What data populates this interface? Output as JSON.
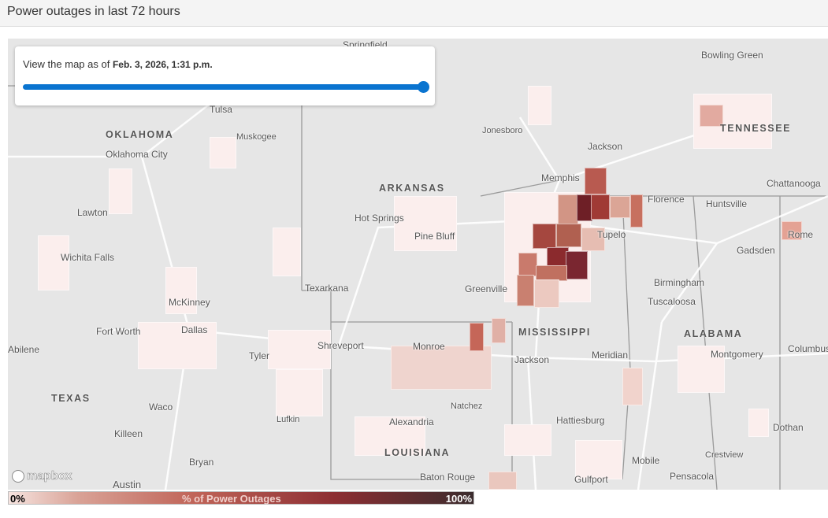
{
  "header": {
    "title": "Power outages in last 72 hours"
  },
  "control": {
    "prefix": "View the map as of",
    "date": "Feb. 3, 2026, 1:31 p.m.",
    "slider_value_pct": 100,
    "accent": "#0a74d0"
  },
  "map": {
    "attribution": "mapbox",
    "states": [
      "OKLAHOMA",
      "ARKANSAS",
      "TENNESSEE",
      "MISSISSIPPI",
      "ALABAMA",
      "TEXAS",
      "LOUISIANA"
    ],
    "cities": [
      "Springfield",
      "Bowling Green",
      "Tulsa",
      "Muskogee",
      "Jonesboro",
      "Jackson",
      "Oklahoma City",
      "Memphis",
      "Chattanooga",
      "Florence",
      "Huntsville",
      "Lawton",
      "Hot Springs",
      "Pine Bluff",
      "Tupelo",
      "Rome",
      "Wichita Falls",
      "Gadsden",
      "Birmingham",
      "Greenville",
      "Texarkana",
      "Tuscaloosa",
      "McKinney",
      "Fort Worth",
      "Dallas",
      "Abilene",
      "Shreveport",
      "Monroe",
      "Tyler",
      "Jackson",
      "Meridian",
      "Montgomery",
      "Columbus",
      "Waco",
      "Natchez",
      "Lufkin",
      "Alexandria",
      "Hattiesburg",
      "Dothan",
      "Killeen",
      "Bryan",
      "Crestview",
      "Mobile",
      "Pensacola",
      "Austin",
      "Baton Rouge",
      "Gulfport"
    ]
  },
  "legend": {
    "min": "0%",
    "title": "% of Power Outages",
    "max": "100%",
    "colors": [
      "#f6e4e0",
      "#c06458",
      "#8d2f33",
      "#3b2c2e"
    ]
  }
}
